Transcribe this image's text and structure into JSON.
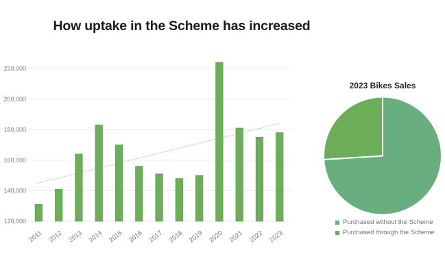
{
  "title": "How uptake in the Scheme has increased",
  "chart_data": [
    {
      "type": "bar",
      "title": "",
      "categories": [
        "2011",
        "2012",
        "2013",
        "2014",
        "2015",
        "2016",
        "2017",
        "2018",
        "2019",
        "2020",
        "2021",
        "2022",
        "2023"
      ],
      "values": [
        131000,
        141000,
        164000,
        183000,
        170000,
        156000,
        151000,
        148000,
        150000,
        224000,
        181000,
        175000,
        178000
      ],
      "ylim": [
        120000,
        230000
      ],
      "yticks": [
        120000,
        140000,
        160000,
        180000,
        200000,
        220000
      ],
      "ytick_labels": [
        "120,000",
        "140,000",
        "160,000",
        "180,000",
        "200,000",
        "220,000"
      ],
      "grid": true,
      "gridline_color": "#e8e8e8",
      "bar_color": "#6dad5c",
      "bar_edge_color": "#61a04f",
      "trendline": {
        "start_value": 145000,
        "end_value": 184000,
        "color": "#a8cc97",
        "style": "dotted"
      }
    },
    {
      "type": "pie",
      "title": "2023 Bikes Sales",
      "start_angle_deg": 90,
      "direction": "clockwise",
      "slice_border_color": "#ffffff",
      "legend_position": "bottom",
      "slices": [
        {
          "label": "Purchased without the Scheme",
          "percent": 74,
          "color": "#68ae7e"
        },
        {
          "label": "Purchased through the Scheme",
          "percent": 26,
          "color": "#6cad57"
        }
      ]
    }
  ]
}
